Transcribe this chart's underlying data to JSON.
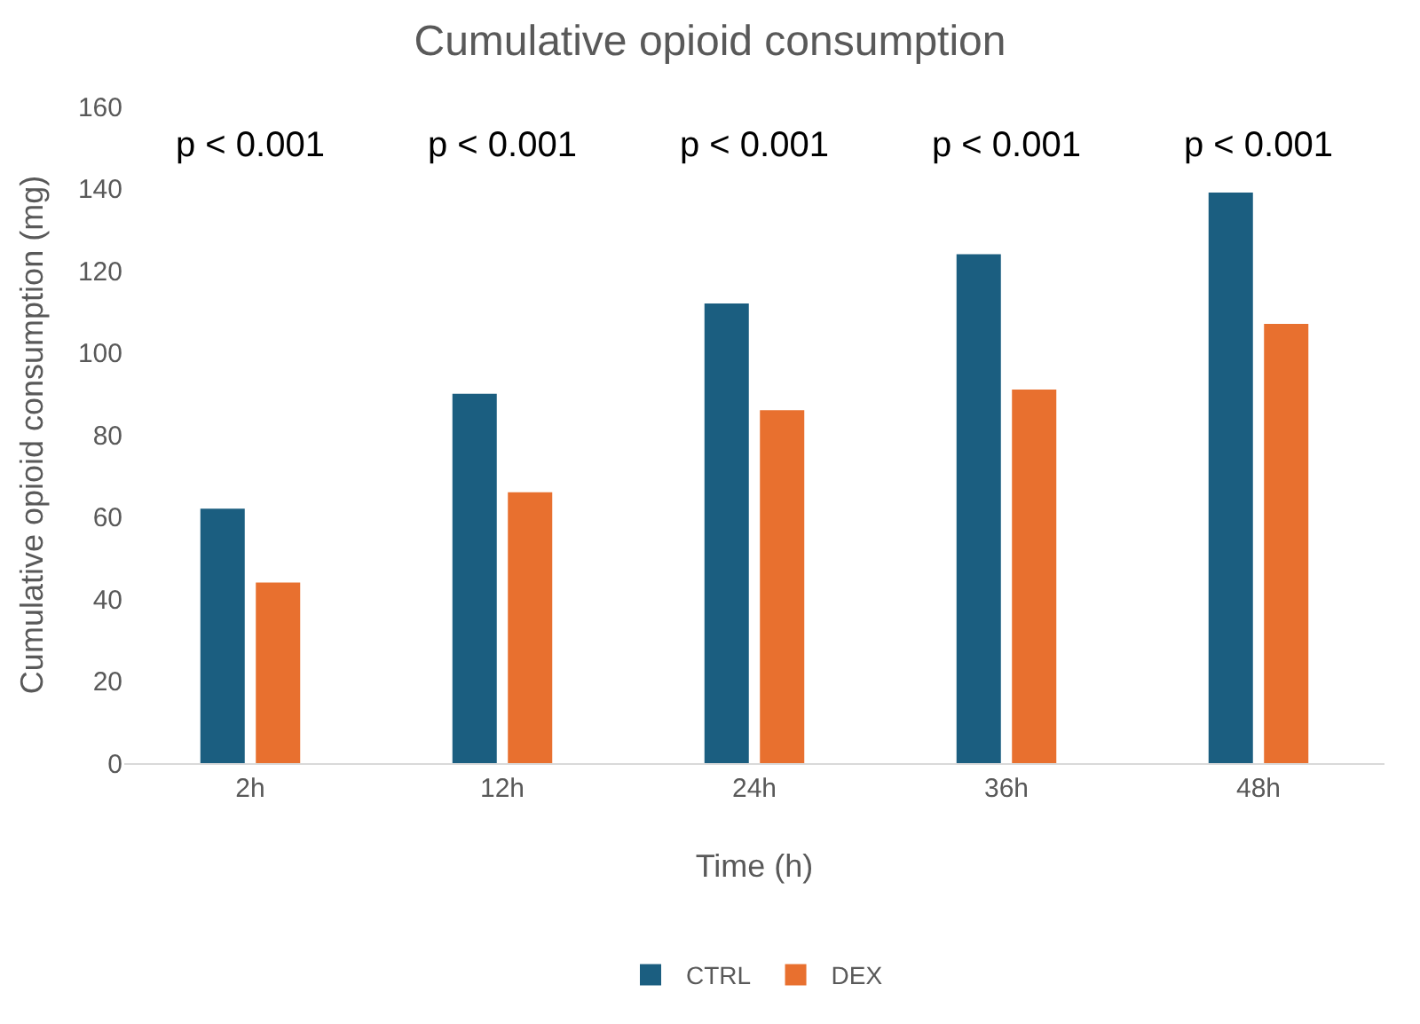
{
  "chart_data": {
    "type": "bar",
    "title": "Cumulative opioid consumption",
    "xlabel": "Time (h)",
    "ylabel": "Cumulative opioid consumption (mg)",
    "categories": [
      "2h",
      "12h",
      "24h",
      "36h",
      "48h"
    ],
    "series": [
      {
        "name": "CTRL",
        "color": "#1b5e80",
        "values": [
          62,
          90,
          112,
          124,
          139
        ]
      },
      {
        "name": "DEX",
        "color": "#e8702f",
        "values": [
          44,
          66,
          86,
          91,
          107
        ]
      }
    ],
    "ylim": [
      0,
      160
    ],
    "yticks": [
      0,
      20,
      40,
      60,
      80,
      100,
      120,
      140,
      160
    ],
    "grid": false,
    "legend": "bottom",
    "annotations": [
      "p < 0.001",
      "p < 0.001",
      "p < 0.001",
      "p < 0.001",
      "p < 0.001"
    ]
  }
}
